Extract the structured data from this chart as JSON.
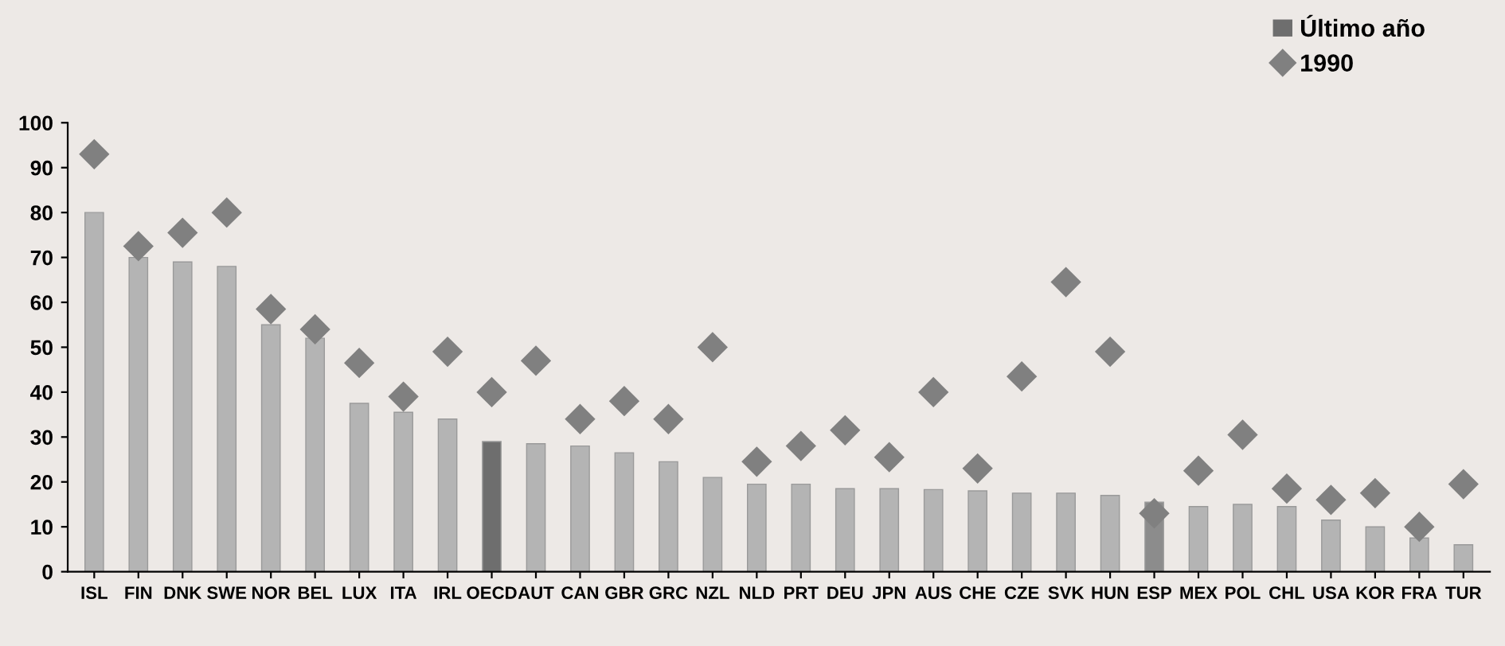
{
  "chart_data": {
    "type": "bar",
    "categories": [
      "ISL",
      "FIN",
      "DNK",
      "SWE",
      "NOR",
      "BEL",
      "LUX",
      "ITA",
      "IRL",
      "OECD",
      "AUT",
      "CAN",
      "GBR",
      "GRC",
      "NZL",
      "NLD",
      "PRT",
      "DEU",
      "JPN",
      "AUS",
      "CHE",
      "CZE",
      "SVK",
      "HUN",
      "ESP",
      "MEX",
      "POL",
      "CHL",
      "USA",
      "KOR",
      "FRA",
      "TUR"
    ],
    "series": [
      {
        "name": "Último año",
        "color": "#6e6e6e",
        "colors": [
          "#b4b4b4",
          "#b4b4b4",
          "#b4b4b4",
          "#b4b4b4",
          "#b4b4b4",
          "#b4b4b4",
          "#b4b4b4",
          "#b4b4b4",
          "#b4b4b4",
          "#6e6e6e",
          "#b4b4b4",
          "#b4b4b4",
          "#b4b4b4",
          "#b4b4b4",
          "#b4b4b4",
          "#b4b4b4",
          "#b4b4b4",
          "#b4b4b4",
          "#b4b4b4",
          "#b4b4b4",
          "#b4b4b4",
          "#b4b4b4",
          "#b4b4b4",
          "#b4b4b4",
          "#8c8c8c",
          "#b4b4b4",
          "#b4b4b4",
          "#b4b4b4",
          "#b4b4b4",
          "#b4b4b4",
          "#b4b4b4",
          "#b4b4b4"
        ],
        "values": [
          80,
          70,
          69,
          68,
          55,
          52,
          37.5,
          35.5,
          34,
          29,
          28.5,
          28,
          26.5,
          24.5,
          21,
          19.5,
          19.5,
          18.5,
          18.5,
          18.3,
          18,
          17.5,
          17.5,
          17,
          15.5,
          14.5,
          15,
          14.5,
          11.5,
          10,
          7.5,
          6
        ]
      },
      {
        "name": "1990",
        "type": "scatter",
        "marker": "diamond",
        "color": "#808080",
        "values": [
          93,
          72.5,
          75.5,
          80,
          58.5,
          54,
          46.5,
          39,
          49,
          40,
          47,
          34,
          38,
          34,
          50,
          24.5,
          28,
          31.5,
          25.5,
          40,
          23,
          43.5,
          64.5,
          49,
          13,
          22.5,
          30.5,
          18.5,
          16,
          17.5,
          10,
          19.5
        ]
      }
    ],
    "ylim": [
      0,
      100
    ],
    "yticks": [
      0,
      10,
      20,
      30,
      40,
      50,
      60,
      70,
      80,
      90,
      100
    ],
    "grid": false,
    "legend": "top right"
  }
}
